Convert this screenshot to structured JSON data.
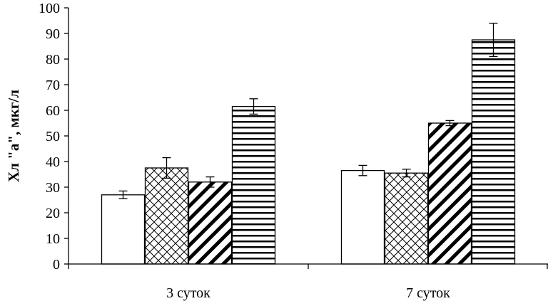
{
  "chart_data": {
    "type": "bar",
    "categories": [
      "3 суток",
      "7 суток"
    ],
    "series": [
      {
        "pattern": "plain",
        "values": [
          27,
          36.5
        ],
        "errors": [
          1.5,
          2
        ]
      },
      {
        "pattern": "crosshatch",
        "values": [
          37.5,
          35.5
        ],
        "errors": [
          4,
          1.5
        ]
      },
      {
        "pattern": "diagonal-stripes",
        "values": [
          32,
          55
        ],
        "errors": [
          2,
          1
        ]
      },
      {
        "pattern": "horizontal-stripes",
        "values": [
          61.5,
          87.5
        ],
        "errors": [
          3,
          6.5
        ]
      }
    ],
    "title": "",
    "xlabel": "",
    "ylabel": "Хл \"а\", мкг/л",
    "ylim": [
      0,
      100
    ],
    "yticks": [
      0,
      10,
      20,
      30,
      40,
      50,
      60,
      70,
      80,
      90,
      100
    ],
    "grid": false,
    "legend": "none",
    "colors": {
      "bar_fill": "#ffffff",
      "ink": "#000000"
    }
  }
}
